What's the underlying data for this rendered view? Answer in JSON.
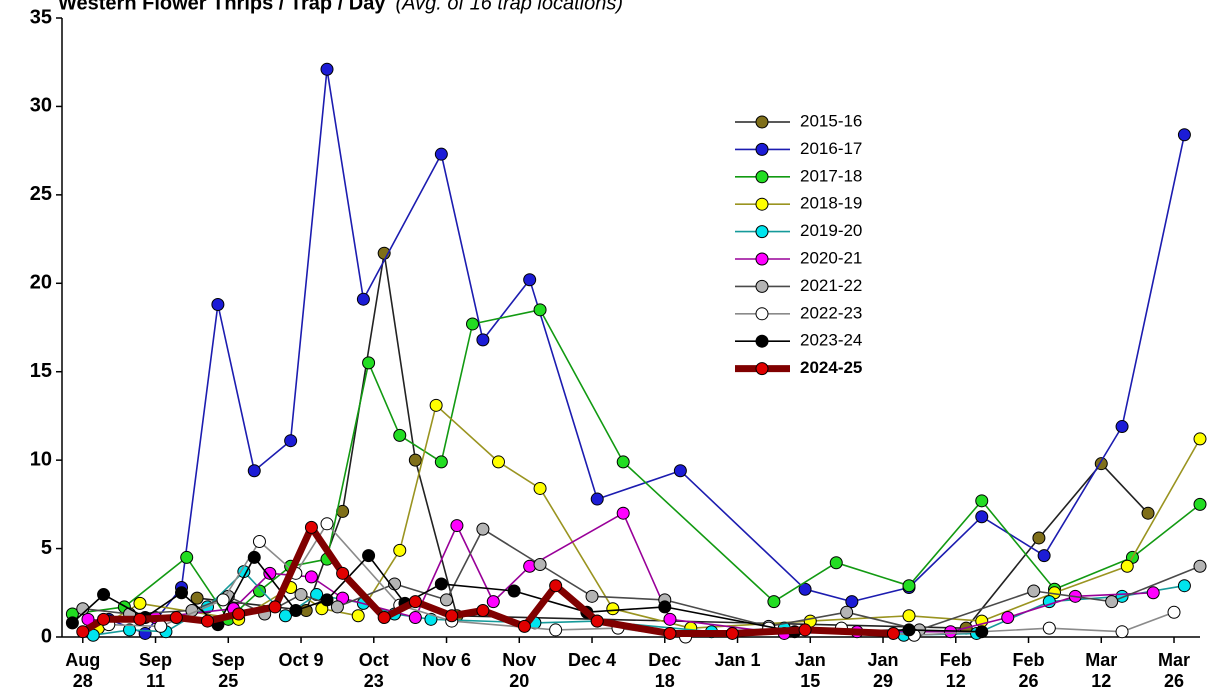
{
  "chart_data": {
    "type": "line",
    "title": "Western Flower Thrips / Trap / Day",
    "subtitle": "(Avg. of 16 trap locations)",
    "xlim": [
      -4,
      215
    ],
    "ylim": [
      0,
      35
    ],
    "yticks": [
      0,
      5,
      10,
      15,
      20,
      25,
      30,
      35
    ],
    "xticks": [
      {
        "value": 0,
        "label": "Aug 28"
      },
      {
        "value": 14,
        "label": "Sep 11"
      },
      {
        "value": 28,
        "label": "Sep 25"
      },
      {
        "value": 42,
        "label": "Oct 9"
      },
      {
        "value": 56,
        "label": "Oct 23"
      },
      {
        "value": 70,
        "label": "Nov 6"
      },
      {
        "value": 84,
        "label": "Nov 20"
      },
      {
        "value": 98,
        "label": "Dec 4"
      },
      {
        "value": 112,
        "label": "Dec 18"
      },
      {
        "value": 126,
        "label": "Jan 1"
      },
      {
        "value": 140,
        "label": "Jan 15"
      },
      {
        "value": 154,
        "label": "Jan 29"
      },
      {
        "value": 168,
        "label": "Feb 12"
      },
      {
        "value": 182,
        "label": "Feb 26"
      },
      {
        "value": 196,
        "label": "Mar 12"
      },
      {
        "value": 210,
        "label": "Mar 26"
      }
    ],
    "grid": false,
    "series": [
      {
        "name": "2015-16",
        "color": "#7f6f1a",
        "line_color": "#222222",
        "line_width": 1.6,
        "x": [
          22,
          43,
          50,
          58,
          64,
          72,
          170,
          184,
          196,
          205
        ],
        "values": [
          2.2,
          1.5,
          7.1,
          21.7,
          10.0,
          1.2,
          0.5,
          5.6,
          9.8,
          7.0
        ]
      },
      {
        "name": "2016-17",
        "color": "#1c1cd6",
        "line_color": "#1c1cb0",
        "line_width": 1.6,
        "x": [
          5,
          12,
          19,
          26,
          33,
          40,
          47,
          54,
          69,
          77,
          86,
          99,
          115,
          139,
          148,
          159,
          173,
          185,
          200,
          212
        ],
        "values": [
          1.0,
          0.2,
          2.8,
          18.8,
          9.4,
          11.1,
          32.1,
          19.1,
          27.3,
          16.8,
          20.2,
          7.8,
          9.4,
          2.7,
          2.0,
          2.8,
          6.8,
          4.6,
          11.9,
          28.4
        ]
      },
      {
        "name": "2017-18",
        "color": "#22dd22",
        "line_color": "#129a12",
        "line_width": 1.6,
        "x": [
          -2,
          8,
          20,
          28,
          34,
          40,
          47,
          55,
          61,
          69,
          75,
          88,
          104,
          133,
          145,
          159,
          173,
          187,
          202,
          215
        ],
        "values": [
          1.3,
          1.7,
          4.5,
          1.0,
          2.6,
          4.0,
          4.4,
          15.5,
          11.4,
          9.9,
          17.7,
          18.5,
          9.9,
          2.0,
          4.2,
          2.9,
          7.7,
          2.7,
          4.5,
          7.5
        ]
      },
      {
        "name": "2018-19",
        "color": "#ffff00",
        "line_color": "#9a9420",
        "line_width": 1.6,
        "x": [
          3,
          11,
          30,
          40,
          46,
          53,
          61,
          68,
          80,
          88,
          102,
          117,
          140,
          159,
          173,
          187,
          201,
          215
        ],
        "values": [
          0.5,
          1.9,
          1.0,
          2.8,
          1.6,
          1.2,
          4.9,
          13.1,
          9.9,
          8.4,
          1.6,
          0.5,
          0.9,
          1.2,
          0.9,
          2.5,
          4.0,
          11.2
        ]
      },
      {
        "name": "2019-20",
        "color": "#00e5ee",
        "line_color": "#159a9a",
        "line_width": 1.6,
        "x": [
          2,
          9,
          16,
          24,
          31,
          39,
          45,
          54,
          60,
          67,
          87,
          99,
          121,
          135,
          158,
          172,
          186,
          200,
          212
        ],
        "values": [
          0.1,
          0.4,
          0.3,
          1.7,
          3.7,
          1.2,
          2.4,
          1.9,
          1.3,
          1.0,
          0.8,
          0.9,
          0.3,
          0.5,
          0.1,
          0.2,
          2.0,
          2.3,
          2.9
        ]
      },
      {
        "name": "2020-21",
        "color": "#ff00ff",
        "line_color": "#990099",
        "line_width": 1.6,
        "x": [
          1,
          5,
          14,
          29,
          36,
          44,
          50,
          64,
          72,
          79,
          86,
          104,
          113,
          135,
          149,
          167,
          178,
          191,
          206
        ],
        "values": [
          1.0,
          0.9,
          1.1,
          1.6,
          3.6,
          3.4,
          2.2,
          1.1,
          6.3,
          2.0,
          4.0,
          7.0,
          1.0,
          0.2,
          0.3,
          0.3,
          1.1,
          2.3,
          2.5
        ]
      },
      {
        "name": "2021-22",
        "color": "#b4b4b4",
        "line_color": "#4a4a4a",
        "line_width": 1.6,
        "x": [
          0,
          9,
          21,
          28,
          35,
          42,
          49,
          60,
          70,
          77,
          88,
          98,
          112,
          132,
          147,
          161,
          183,
          198,
          215
        ],
        "values": [
          1.6,
          1.3,
          1.5,
          2.3,
          1.3,
          2.4,
          1.7,
          3.0,
          2.1,
          6.1,
          4.1,
          2.3,
          2.1,
          0.6,
          1.4,
          0.4,
          2.6,
          2.0,
          4.0
        ]
      },
      {
        "name": "2022-23",
        "color": "#ffffff",
        "line_color": "#8a8a8a",
        "line_width": 1.6,
        "x": [
          5,
          15,
          27,
          34,
          41,
          47,
          61,
          71,
          91,
          103,
          116,
          132,
          146,
          160,
          186,
          200,
          210
        ],
        "values": [
          0.7,
          0.6,
          2.1,
          5.4,
          3.6,
          6.4,
          1.8,
          0.9,
          0.4,
          0.5,
          0.0,
          0.5,
          0.5,
          0.1,
          0.5,
          0.3,
          1.4
        ]
      },
      {
        "name": "2023-24",
        "color": "#000000",
        "line_color": "#000000",
        "line_width": 1.6,
        "x": [
          -2,
          4,
          12,
          19,
          26,
          33,
          41,
          47,
          55,
          62,
          69,
          83,
          97,
          112,
          137,
          159,
          173
        ],
        "values": [
          0.8,
          2.4,
          1.1,
          2.5,
          0.7,
          4.5,
          1.5,
          2.1,
          4.6,
          1.9,
          3.0,
          2.6,
          1.4,
          1.7,
          0.3,
          0.4,
          0.3
        ]
      },
      {
        "name": "2024-25",
        "color": "#e00000",
        "line_color": "#800000",
        "line_width": 7,
        "bold": true,
        "x": [
          0,
          4,
          11,
          18,
          24,
          30,
          37,
          44,
          50,
          58,
          64,
          71,
          77,
          85,
          91,
          99,
          113,
          125,
          139,
          156
        ],
        "values": [
          0.3,
          1.0,
          1.0,
          1.1,
          0.9,
          1.3,
          1.7,
          6.2,
          3.6,
          1.1,
          2.0,
          1.2,
          1.5,
          0.6,
          2.9,
          0.9,
          0.2,
          0.2,
          0.4,
          0.2
        ]
      }
    ]
  }
}
